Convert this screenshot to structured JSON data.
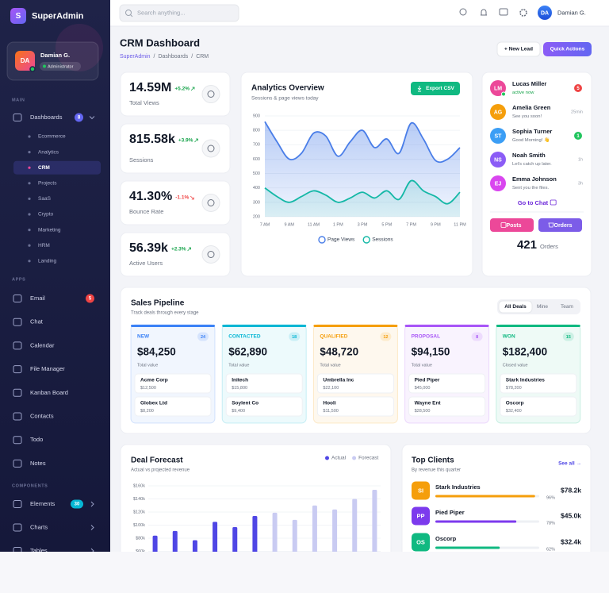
{
  "sidebar": {
    "logo": "S",
    "brand": "SuperAdmin",
    "user": {
      "initials": "DA",
      "name": "Damian G.",
      "role": "Administrator"
    },
    "sections": [
      {
        "title": "MAIN",
        "items": [
          {
            "label": "Dashboards",
            "badge": "8",
            "badge_color": "#6366f1",
            "children": [
              "Ecommerce",
              "Analytics",
              "CRM",
              "Projects",
              "SaaS",
              "Crypto",
              "Marketing",
              "HRM",
              "Landing"
            ]
          }
        ]
      },
      {
        "title": "APPS",
        "items": [
          {
            "label": "Email",
            "badge": "5",
            "badge_color": "#ef4444"
          },
          {
            "label": "Chat"
          },
          {
            "label": "Calendar"
          },
          {
            "label": "File Manager"
          },
          {
            "label": "Kanban Board"
          },
          {
            "label": "Contacts"
          },
          {
            "label": "Todo"
          },
          {
            "label": "Notes"
          }
        ]
      },
      {
        "title": "COMPONENTS",
        "items": [
          {
            "label": "Elements",
            "badge": "30",
            "badge_color": "#06b6d4"
          },
          {
            "label": "Charts"
          },
          {
            "label": "Tables"
          }
        ]
      }
    ]
  },
  "topbar": {
    "search": "Search anything...",
    "initials": "DA",
    "name": "Damian G."
  },
  "header": {
    "title": "CRM Dashboard",
    "breadcrumb": [
      "SuperAdmin",
      "/",
      "Dashboards",
      "/",
      "CRM"
    ],
    "new_lead": "+ New Lead",
    "quick_actions": "Quick Actions"
  },
  "stats": [
    {
      "value": "14.59M",
      "change": "+5.2%",
      "color": "#16a34a",
      "label": "Total Views"
    },
    {
      "value": "815.58k",
      "change": "+3.9%",
      "color": "#16a34a",
      "label": "Sessions"
    },
    {
      "value": "41.30%",
      "change": "-1.1%",
      "color": "#ef4444",
      "label": "Bounce Rate"
    },
    {
      "value": "56.39k",
      "change": "+2.3%",
      "color": "#16a34a",
      "label": "Active Users"
    }
  ],
  "chart_data": [
    {
      "type": "area",
      "title": "Analytics Overview",
      "subtitle": "Sessions & page views today",
      "button": "Export CSV",
      "categories": [
        "7 AM",
        null,
        "9 AM",
        null,
        "11 AM",
        null,
        "1 PM",
        null,
        "3 PM",
        null,
        "5 PM",
        null,
        "7 PM",
        null,
        "9 PM",
        null,
        "11 PM"
      ],
      "series": [
        {
          "name": "Page Views",
          "color": "#4a7ee8",
          "values": [
            860,
            720,
            600,
            640,
            780,
            760,
            620,
            720,
            800,
            680,
            740,
            640,
            850,
            740,
            590,
            600,
            680
          ]
        },
        {
          "name": "Sessions",
          "color": "#14b8a6",
          "values": [
            400,
            340,
            300,
            340,
            380,
            350,
            300,
            330,
            370,
            330,
            380,
            320,
            450,
            380,
            340,
            290,
            370
          ]
        }
      ],
      "ylim": [
        200,
        900
      ],
      "yticks": [
        200,
        300,
        400,
        500,
        600,
        700,
        800,
        900
      ],
      "grid": true,
      "legend": "bottom"
    },
    {
      "type": "bar",
      "title": "Deal Forecast",
      "subtitle": "Actual vs projected revenue",
      "series": [
        {
          "name": "Actual",
          "color": "#4f46e5",
          "values": [
            84000,
            91000,
            77000,
            105000,
            97000,
            114000,
            null,
            null,
            null,
            null,
            null,
            null
          ]
        },
        {
          "name": "Forecast",
          "color": "#c9cbf2",
          "values": [
            null,
            null,
            null,
            null,
            null,
            null,
            119000,
            108000,
            130000,
            124000,
            140000,
            154000
          ]
        }
      ],
      "ylim": [
        0,
        160000
      ],
      "yticks": [
        {
          "value": 60000,
          "label": "$60k"
        },
        {
          "value": 80000,
          "label": "$80k"
        },
        {
          "value": 100000,
          "label": "$100k"
        },
        {
          "value": 120000,
          "label": "$120k"
        },
        {
          "value": 140000,
          "label": "$140k"
        },
        {
          "value": 160000,
          "label": "$160k"
        }
      ],
      "grid": true,
      "legend": "top-right"
    }
  ],
  "messages": {
    "items": [
      {
        "initials": "LM",
        "color": "#ec4899",
        "name": "Lucas Miller",
        "text": "active now",
        "text_color": "#16a34a",
        "meta": "5",
        "badge": "#ef4444"
      },
      {
        "initials": "AG",
        "color": "#f59e0b",
        "name": "Amelia Green",
        "text": "See you soon!",
        "meta": "25min"
      },
      {
        "initials": "ST",
        "color": "#3b9ef5",
        "name": "Sophia Turner",
        "text": "Good Morning! 👋",
        "meta": "1",
        "badge": "#22c55e"
      },
      {
        "initials": "NS",
        "color": "#8b5cf6",
        "name": "Noah Smith",
        "text": "Let's catch up later.",
        "meta": "1h"
      },
      {
        "initials": "EJ",
        "color": "#d946ef",
        "name": "Emma Johnson",
        "text": "Sent you the files.",
        "meta": "3h"
      }
    ],
    "link": "Go to Chat",
    "posts": "Posts",
    "orders": "Orders",
    "count": "421",
    "count_label": "Orders"
  },
  "pipeline": {
    "title": "Sales Pipeline",
    "subtitle": "Track deals through every stage",
    "tabs": [
      "All Deals",
      "Mine",
      "Team"
    ],
    "stages": [
      {
        "name": "NEW",
        "count": "24",
        "value": "$84,250",
        "value_label": "Total value",
        "color": "#3b82f6",
        "deals": [
          {
            "name": "Acme Corp",
            "amount": "$12,500"
          },
          {
            "name": "Globex Ltd",
            "amount": "$8,200"
          }
        ]
      },
      {
        "name": "CONTACTED",
        "count": "18",
        "value": "$62,890",
        "value_label": "Total value",
        "color": "#06b6d4",
        "deals": [
          {
            "name": "Initech",
            "amount": "$15,800"
          },
          {
            "name": "Soylent Co",
            "amount": "$9,400"
          }
        ]
      },
      {
        "name": "QUALIFIED",
        "count": "12",
        "value": "$48,720",
        "value_label": "Total value",
        "color": "#f59e0b",
        "deals": [
          {
            "name": "Umbrella Inc",
            "amount": "$22,100"
          },
          {
            "name": "Hooli",
            "amount": "$11,500"
          }
        ]
      },
      {
        "name": "PROPOSAL",
        "count": "8",
        "value": "$94,150",
        "value_label": "Total value",
        "color": "#a855f7",
        "deals": [
          {
            "name": "Pied Piper",
            "amount": "$45,000"
          },
          {
            "name": "Wayne Ent",
            "amount": "$28,500"
          }
        ]
      },
      {
        "name": "WON",
        "count": "15",
        "value": "$182,400",
        "value_label": "Closed value",
        "color": "#10b981",
        "deals": [
          {
            "name": "Stark Industries",
            "amount": "$78,200"
          },
          {
            "name": "Oscorp",
            "amount": "$32,400"
          }
        ]
      }
    ]
  },
  "top_clients": {
    "title": "Top Clients",
    "subtitle": "By revenue this quarter",
    "link": "See all →",
    "clients": [
      {
        "initials": "SI",
        "name": "Stark Industries",
        "share": {
          "value": 96,
          "label": "96%"
        },
        "revenue": "$78.2k",
        "color": "#f59e0b"
      },
      {
        "initials": "PP",
        "name": "Pied Piper",
        "share": {
          "value": 78,
          "label": "78%"
        },
        "revenue": "$45.0k",
        "color": "#7c3aed"
      },
      {
        "initials": "OS",
        "name": "Oscorp",
        "share": {
          "value": 62,
          "label": "62%"
        },
        "revenue": "$32.4k",
        "color": "#10b981"
      }
    ]
  }
}
